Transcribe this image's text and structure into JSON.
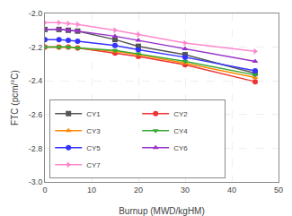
{
  "chart_data": {
    "type": "line",
    "xlabel": "Burnup (MWD/kgHM)",
    "ylabel": "FTC (pcm/°C)",
    "x": [
      0,
      3,
      5,
      7,
      15,
      20,
      30,
      45
    ],
    "xlim": [
      0,
      50
    ],
    "ylim": [
      -3.0,
      -2.0
    ],
    "xticks": [
      0,
      10,
      20,
      30,
      40,
      50
    ],
    "yticks": [
      {
        "value": -3.0,
        "label": "-3.0"
      },
      -2.8,
      -2.6,
      -2.4,
      -2.2,
      {
        "value": -2.0,
        "label": "-2.0"
      }
    ],
    "grid": true,
    "legend": "lower left",
    "series": [
      {
        "name": "CY1",
        "color": "#555555",
        "marker": "square",
        "values": [
          -2.095,
          -2.095,
          -2.1,
          -2.105,
          -2.155,
          -2.195,
          -2.245,
          -2.355
        ]
      },
      {
        "name": "CY2",
        "color": "#ee3333",
        "marker": "circle",
        "values": [
          -2.2,
          -2.2,
          -2.2,
          -2.205,
          -2.235,
          -2.255,
          -2.305,
          -2.405
        ]
      },
      {
        "name": "CY3",
        "color": "#ff8800",
        "marker": "triangle-up",
        "values": [
          -2.2,
          -2.2,
          -2.2,
          -2.205,
          -2.225,
          -2.245,
          -2.295,
          -2.38
        ]
      },
      {
        "name": "CY4",
        "color": "#33aa33",
        "marker": "triangle-down",
        "values": [
          -2.2,
          -2.2,
          -2.2,
          -2.205,
          -2.22,
          -2.24,
          -2.285,
          -2.365
        ]
      },
      {
        "name": "CY5",
        "color": "#3333ff",
        "marker": "circle",
        "values": [
          -2.155,
          -2.155,
          -2.16,
          -2.165,
          -2.19,
          -2.215,
          -2.26,
          -2.34
        ]
      },
      {
        "name": "CY6",
        "color": "#9933cc",
        "marker": "triangle-up",
        "values": [
          -2.095,
          -2.095,
          -2.1,
          -2.105,
          -2.135,
          -2.16,
          -2.21,
          -2.285
        ]
      },
      {
        "name": "CY7",
        "color": "#ff88cc",
        "marker": "triangle-right",
        "values": [
          -2.055,
          -2.055,
          -2.06,
          -2.065,
          -2.1,
          -2.125,
          -2.175,
          -2.225
        ]
      }
    ]
  }
}
